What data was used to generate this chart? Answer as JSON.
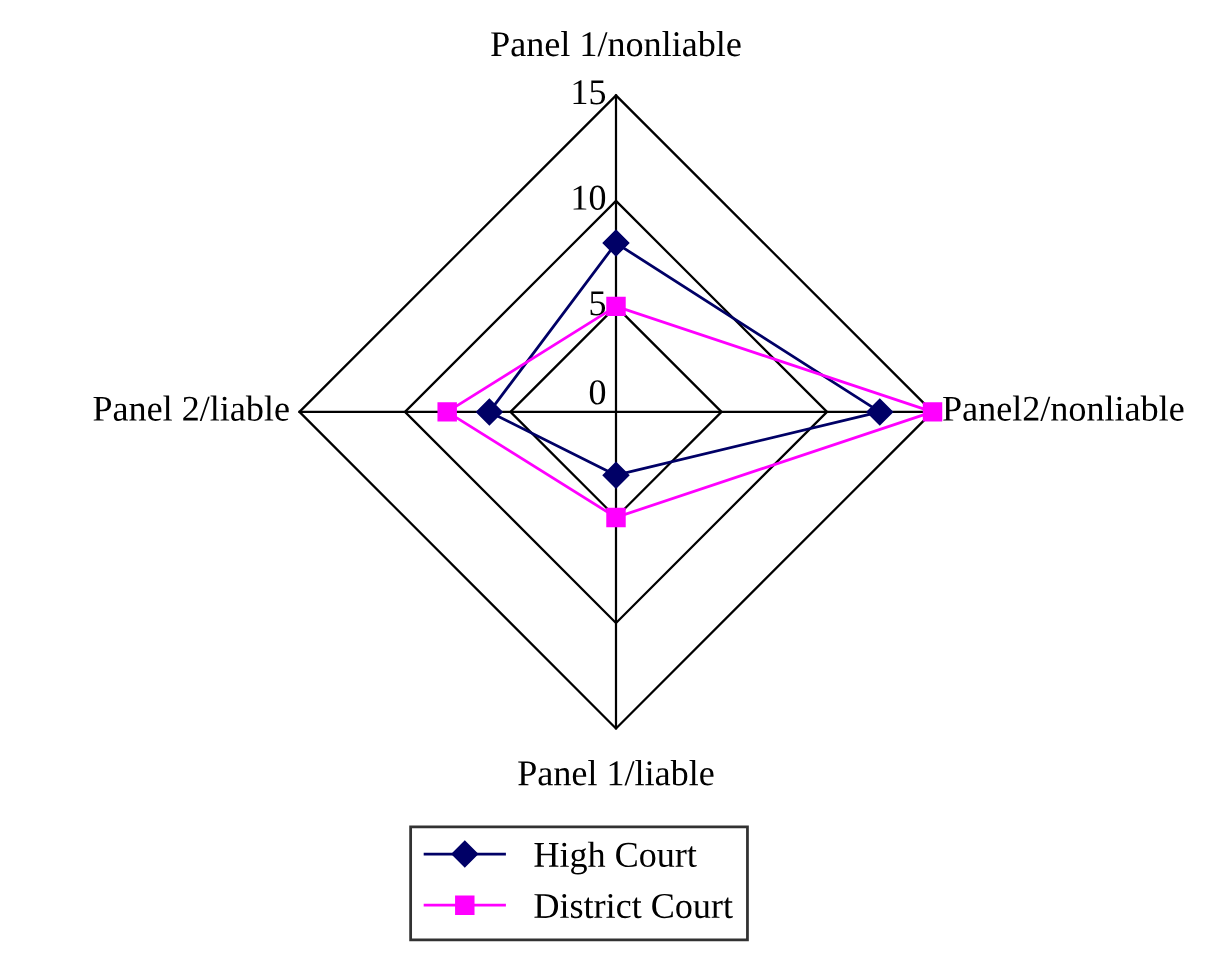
{
  "chart_data": {
    "type": "radar",
    "categories": [
      "Panel 1/nonliable",
      "Panel2/nonliable",
      "Panel 1/liable",
      "Panel 2/liable"
    ],
    "ylim": [
      0,
      15
    ],
    "yticks": [
      0,
      5,
      10,
      15
    ],
    "grid": true,
    "legend": "bottom",
    "series": [
      {
        "name": "High Court",
        "color": "#000066",
        "marker": "diamond",
        "values": [
          8,
          12.5,
          3,
          6
        ]
      },
      {
        "name": "District Court",
        "color": "#ff00ff",
        "marker": "square",
        "values": [
          5,
          15,
          5,
          8
        ]
      }
    ]
  }
}
